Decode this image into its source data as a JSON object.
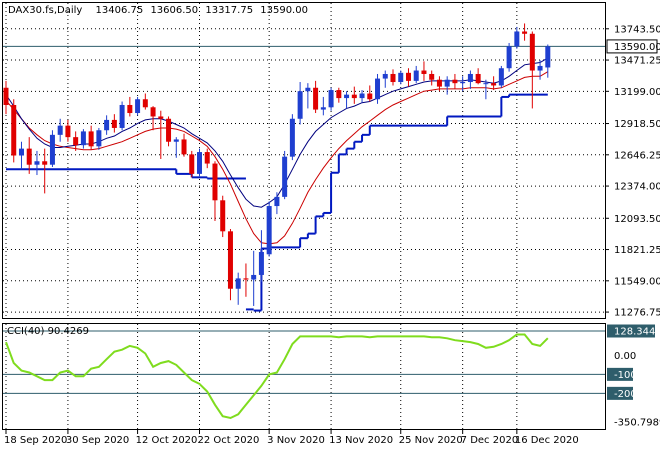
{
  "window": {
    "symbol": "DAX30.fs,Daily",
    "ohlc": [
      "13406.75",
      "13606.50",
      "13317.75",
      "13590.00"
    ]
  },
  "colors": {
    "bull": "#1f3fd0",
    "bear": "#e00000",
    "ma_fast": "#00007f",
    "ma_slow": "#cc0000",
    "stop": "#0018c0",
    "cci": "#7fdc1e",
    "level_line": "#2e5d6b",
    "grid": "#000000",
    "price_tag_bg": "#ffffff"
  },
  "chart_data": [
    {
      "type": "candlestick",
      "title": "DAX30.fs,Daily",
      "yticks": [
        "13743.50",
        "13471.25",
        "13199.00",
        "12918.50",
        "12646.25",
        "12374.00",
        "12093.50",
        "11821.25",
        "11549.00",
        "11276.75"
      ],
      "ylim": [
        11260,
        13820
      ],
      "current_price": "13590.00",
      "horizontal_line": 13590,
      "grid": "dotted",
      "candles": [
        {
          "o": 13230,
          "h": 13290,
          "l": 13000,
          "c": 13080
        },
        {
          "o": 13080,
          "h": 13130,
          "l": 12580,
          "c": 12640
        },
        {
          "o": 12640,
          "h": 12760,
          "l": 12520,
          "c": 12700
        },
        {
          "o": 12700,
          "h": 12800,
          "l": 12480,
          "c": 12560
        },
        {
          "o": 12560,
          "h": 12680,
          "l": 12470,
          "c": 12590
        },
        {
          "o": 12590,
          "h": 12700,
          "l": 12310,
          "c": 12560
        },
        {
          "o": 12560,
          "h": 12860,
          "l": 12540,
          "c": 12820
        },
        {
          "o": 12820,
          "h": 12960,
          "l": 12760,
          "c": 12900
        },
        {
          "o": 12900,
          "h": 12950,
          "l": 12760,
          "c": 12800
        },
        {
          "o": 12800,
          "h": 12850,
          "l": 12680,
          "c": 12730
        },
        {
          "o": 12730,
          "h": 12870,
          "l": 12700,
          "c": 12850
        },
        {
          "o": 12850,
          "h": 12900,
          "l": 12690,
          "c": 12720
        },
        {
          "o": 12720,
          "h": 12880,
          "l": 12690,
          "c": 12860
        },
        {
          "o": 12860,
          "h": 12990,
          "l": 12820,
          "c": 12950
        },
        {
          "o": 12950,
          "h": 13000,
          "l": 12840,
          "c": 12880
        },
        {
          "o": 12880,
          "h": 13110,
          "l": 12860,
          "c": 13080
        },
        {
          "o": 13080,
          "h": 13150,
          "l": 12980,
          "c": 13010
        },
        {
          "o": 13010,
          "h": 13150,
          "l": 12990,
          "c": 13130
        },
        {
          "o": 13130,
          "h": 13180,
          "l": 13040,
          "c": 13060
        },
        {
          "o": 13060,
          "h": 13070,
          "l": 12860,
          "c": 12980
        },
        {
          "o": 12980,
          "h": 13030,
          "l": 12610,
          "c": 12960
        },
        {
          "o": 12960,
          "h": 12980,
          "l": 12720,
          "c": 12760
        },
        {
          "o": 12760,
          "h": 12800,
          "l": 12620,
          "c": 12780
        },
        {
          "o": 12780,
          "h": 12830,
          "l": 12630,
          "c": 12650
        },
        {
          "o": 12650,
          "h": 12680,
          "l": 12450,
          "c": 12480
        },
        {
          "o": 12480,
          "h": 12700,
          "l": 12460,
          "c": 12670
        },
        {
          "o": 12670,
          "h": 12700,
          "l": 12530,
          "c": 12570
        },
        {
          "o": 12570,
          "h": 12590,
          "l": 12070,
          "c": 12250
        },
        {
          "o": 12250,
          "h": 12290,
          "l": 11930,
          "c": 11980
        },
        {
          "o": 11980,
          "h": 12000,
          "l": 11380,
          "c": 11480
        },
        {
          "o": 11480,
          "h": 11620,
          "l": 11340,
          "c": 11570
        },
        {
          "o": 11570,
          "h": 11700,
          "l": 11410,
          "c": 11560
        },
        {
          "o": 11560,
          "h": 11810,
          "l": 11330,
          "c": 11600
        },
        {
          "o": 11600,
          "h": 11990,
          "l": 11540,
          "c": 11800
        },
        {
          "o": 11780,
          "h": 12240,
          "l": 11760,
          "c": 12200
        },
        {
          "o": 12200,
          "h": 12320,
          "l": 12130,
          "c": 12280
        },
        {
          "o": 12280,
          "h": 12680,
          "l": 12260,
          "c": 12630
        },
        {
          "o": 12630,
          "h": 13000,
          "l": 12600,
          "c": 12960
        },
        {
          "o": 12960,
          "h": 13280,
          "l": 12910,
          "c": 13200
        },
        {
          "o": 13200,
          "h": 13270,
          "l": 13050,
          "c": 13230
        },
        {
          "o": 13230,
          "h": 13290,
          "l": 13010,
          "c": 13040
        },
        {
          "o": 13040,
          "h": 13150,
          "l": 12990,
          "c": 13060
        },
        {
          "o": 13060,
          "h": 13230,
          "l": 13030,
          "c": 13210
        },
        {
          "o": 13210,
          "h": 13230,
          "l": 13100,
          "c": 13140
        },
        {
          "o": 13140,
          "h": 13200,
          "l": 13050,
          "c": 13170
        },
        {
          "o": 13170,
          "h": 13240,
          "l": 13090,
          "c": 13140
        },
        {
          "o": 13140,
          "h": 13210,
          "l": 13100,
          "c": 13180
        },
        {
          "o": 13180,
          "h": 13250,
          "l": 13110,
          "c": 13130
        },
        {
          "o": 13130,
          "h": 13350,
          "l": 13090,
          "c": 13310
        },
        {
          "o": 13310,
          "h": 13380,
          "l": 13230,
          "c": 13350
        },
        {
          "o": 13350,
          "h": 13390,
          "l": 13250,
          "c": 13280
        },
        {
          "o": 13280,
          "h": 13380,
          "l": 13260,
          "c": 13360
        },
        {
          "o": 13360,
          "h": 13400,
          "l": 13240,
          "c": 13290
        },
        {
          "o": 13290,
          "h": 13420,
          "l": 13270,
          "c": 13380
        },
        {
          "o": 13380,
          "h": 13460,
          "l": 13290,
          "c": 13350
        },
        {
          "o": 13350,
          "h": 13380,
          "l": 13250,
          "c": 13300
        },
        {
          "o": 13300,
          "h": 13330,
          "l": 13200,
          "c": 13240
        },
        {
          "o": 13240,
          "h": 13330,
          "l": 13170,
          "c": 13300
        },
        {
          "o": 13300,
          "h": 13350,
          "l": 13220,
          "c": 13270
        },
        {
          "o": 13270,
          "h": 13330,
          "l": 13200,
          "c": 13280
        },
        {
          "o": 13280,
          "h": 13380,
          "l": 13220,
          "c": 13350
        },
        {
          "o": 13350,
          "h": 13400,
          "l": 13260,
          "c": 13270
        },
        {
          "o": 13270,
          "h": 13300,
          "l": 13130,
          "c": 13270
        },
        {
          "o": 13270,
          "h": 13330,
          "l": 13210,
          "c": 13250
        },
        {
          "o": 13250,
          "h": 13420,
          "l": 13230,
          "c": 13400
        },
        {
          "o": 13400,
          "h": 13620,
          "l": 13370,
          "c": 13590
        },
        {
          "o": 13590,
          "h": 13760,
          "l": 13570,
          "c": 13720
        },
        {
          "o": 13720,
          "h": 13790,
          "l": 13640,
          "c": 13700
        },
        {
          "o": 13700,
          "h": 13720,
          "l": 13050,
          "c": 13380
        },
        {
          "o": 13380,
          "h": 13470,
          "l": 13300,
          "c": 13420
        },
        {
          "o": 13406.75,
          "h": 13606.5,
          "l": 13317.75,
          "c": 13590
        }
      ],
      "ma_fast": [
        13170,
        13070,
        12960,
        12870,
        12790,
        12740,
        12710,
        12710,
        12720,
        12730,
        12740,
        12740,
        12760,
        12790,
        12810,
        12850,
        12880,
        12920,
        12950,
        12960,
        12960,
        12940,
        12910,
        12880,
        12830,
        12790,
        12750,
        12680,
        12590,
        12470,
        12360,
        12260,
        12200,
        12190,
        12230,
        12280,
        12390,
        12520,
        12650,
        12760,
        12850,
        12910,
        12970,
        13010,
        13050,
        13070,
        13100,
        13110,
        13140,
        13170,
        13200,
        13220,
        13240,
        13260,
        13280,
        13290,
        13290,
        13290,
        13290,
        13290,
        13300,
        13290,
        13280,
        13270,
        13290,
        13330,
        13380,
        13430,
        13440,
        13450,
        13490
      ],
      "ma_slow": [
        13120,
        13040,
        12960,
        12880,
        12820,
        12770,
        12740,
        12720,
        12710,
        12700,
        12690,
        12690,
        12700,
        12720,
        12740,
        12760,
        12790,
        12820,
        12850,
        12870,
        12880,
        12880,
        12870,
        12850,
        12810,
        12770,
        12720,
        12630,
        12520,
        12390,
        12240,
        12090,
        11960,
        11880,
        11870,
        11880,
        11940,
        12050,
        12180,
        12320,
        12430,
        12530,
        12620,
        12700,
        12770,
        12830,
        12890,
        12940,
        12990,
        13040,
        13080,
        13110,
        13140,
        13170,
        13200,
        13210,
        13220,
        13220,
        13220,
        13220,
        13230,
        13230,
        13230,
        13220,
        13230,
        13260,
        13290,
        13320,
        13330,
        13330,
        13370
      ],
      "stop_line": [
        {
          "from": 0,
          "to": 22,
          "value": 12520
        },
        {
          "from": 22,
          "to": 24,
          "value": 12480
        },
        {
          "from": 24,
          "to": 26,
          "value": 12450
        },
        {
          "from": 26,
          "to": 31,
          "value": 12440
        },
        {
          "from": 31,
          "to": 32,
          "value": 11300
        },
        {
          "from": 32,
          "to": 33,
          "value": 11290
        },
        {
          "from": 33,
          "to": 34,
          "value": 11830
        },
        {
          "from": 34,
          "to": 38,
          "value": 11840
        },
        {
          "from": 38,
          "to": 39,
          "value": 11920
        },
        {
          "from": 39,
          "to": 40,
          "value": 11960
        },
        {
          "from": 40,
          "to": 41,
          "value": 12110
        },
        {
          "from": 41,
          "to": 42,
          "value": 12140
        },
        {
          "from": 42,
          "to": 43,
          "value": 12490
        },
        {
          "from": 43,
          "to": 44,
          "value": 12650
        },
        {
          "from": 44,
          "to": 45,
          "value": 12700
        },
        {
          "from": 45,
          "to": 46,
          "value": 12760
        },
        {
          "from": 46,
          "to": 47,
          "value": 12820
        },
        {
          "from": 47,
          "to": 57,
          "value": 12900
        },
        {
          "from": 57,
          "to": 64,
          "value": 12980
        },
        {
          "from": 64,
          "to": 65,
          "value": 13150
        },
        {
          "from": 65,
          "to": 70,
          "value": 13170
        }
      ]
    },
    {
      "type": "line",
      "title": "CCI(40) 90.4269",
      "yticks": [
        "128.3441",
        "0.00",
        "-100",
        "-200",
        "-350.7989"
      ],
      "ylim": [
        -350.7989,
        128.3441
      ],
      "level_lines": [
        128.3441,
        -100,
        -200
      ],
      "values": [
        70,
        -40,
        -80,
        -90,
        -110,
        -130,
        -130,
        -90,
        -80,
        -110,
        -110,
        -70,
        -60,
        -20,
        20,
        30,
        50,
        40,
        10,
        -60,
        -40,
        -30,
        -50,
        -90,
        -130,
        -150,
        -190,
        -260,
        -320,
        -330,
        -310,
        -260,
        -210,
        -160,
        -100,
        -90,
        -20,
        60,
        100,
        100,
        100,
        100,
        100,
        95,
        100,
        100,
        100,
        95,
        100,
        100,
        100,
        100,
        100,
        100,
        100,
        95,
        95,
        90,
        80,
        75,
        70,
        60,
        40,
        45,
        60,
        80,
        110,
        110,
        60,
        50,
        90.4269
      ],
      "xticks": [
        {
          "index": 0,
          "label": "18 Sep 2020"
        },
        {
          "index": 8,
          "label": "30 Sep 2020"
        },
        {
          "index": 17,
          "label": "12 Oct 2020"
        },
        {
          "index": 25,
          "label": "22 Oct 2020"
        },
        {
          "index": 34,
          "label": "3 Nov 2020"
        },
        {
          "index": 42,
          "label": "13 Nov 2020"
        },
        {
          "index": 51,
          "label": "25 Nov 2020"
        },
        {
          "index": 59,
          "label": "7 Dec 2020"
        },
        {
          "index": 66,
          "label": "16 Dec 2020"
        }
      ]
    }
  ]
}
